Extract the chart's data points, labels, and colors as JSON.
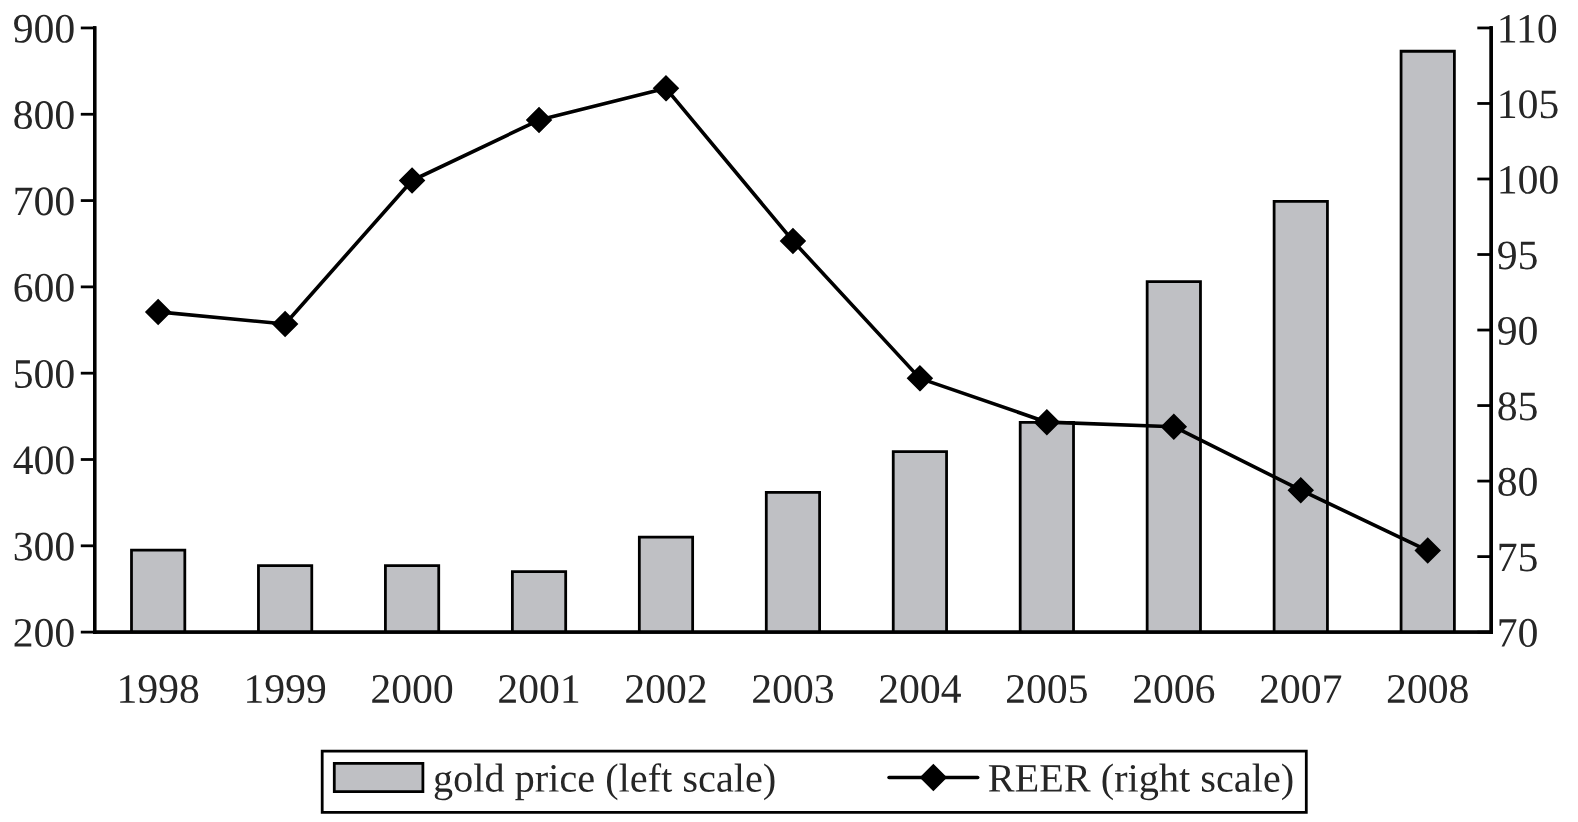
{
  "chart_data": {
    "type": "bar",
    "categories": [
      "1998",
      "1999",
      "2000",
      "2001",
      "2002",
      "2003",
      "2004",
      "2005",
      "2006",
      "2007",
      "2008"
    ],
    "series": [
      {
        "name": "gold price (left scale)",
        "color": "#bfc0c4",
        "values": [
          295,
          277,
          277,
          270,
          310,
          362,
          409,
          443,
          606,
          699,
          873
        ]
      },
      {
        "name": "REER (right scale)",
        "type": "line",
        "axis": "y2",
        "color": "#000000",
        "marker": "diamond",
        "line_style": "solid",
        "values": [
          91.2,
          90.4,
          99.9,
          103.9,
          106,
          95.9,
          86.8,
          83.9,
          83.6,
          79.4,
          75.4
        ]
      }
    ],
    "ylim": [
      200,
      900
    ],
    "yticks": [
      200,
      300,
      400,
      500,
      600,
      700,
      800,
      900
    ],
    "y2lim": [
      70,
      110
    ],
    "y2ticks": [
      70,
      75,
      80,
      85,
      90,
      95,
      100,
      105,
      110
    ],
    "legend": "bottom",
    "grid": false
  }
}
